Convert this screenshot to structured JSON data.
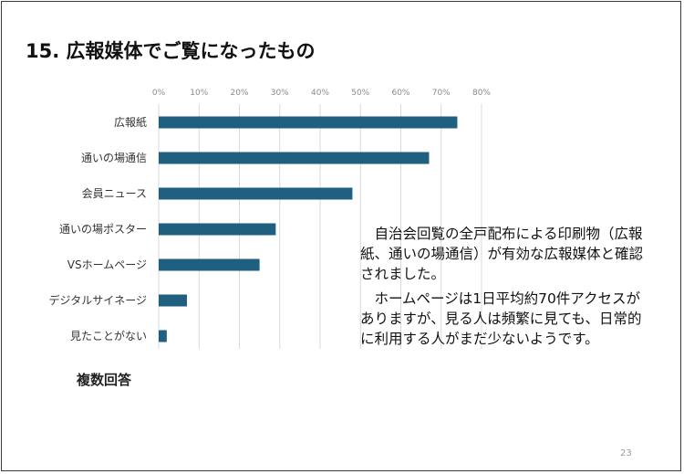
{
  "slide": {
    "title": "15. 広報媒体でご覧になったもの",
    "footnote": "複数回答",
    "paragraphs": [
      "自治会回覧の全戸配布による印刷物（広報紙、通いの場通信）が有効な広報媒体と確認されました。",
      "ホームページは1日平均約70件アクセスがありますが、見る人は頻繁に見ても、日常的に利用する人がまだ少ないようです。"
    ],
    "page_number": "23"
  },
  "chart_data": {
    "type": "bar",
    "orientation": "horizontal",
    "categories": [
      "広報紙",
      "通いの場通信",
      "会員ニュース",
      "通いの場ポスター",
      "VSホームページ",
      "デジタルサイネージ",
      "見たことがない"
    ],
    "values": [
      74,
      67,
      48,
      29,
      25,
      7,
      2
    ],
    "xlim": [
      0,
      80
    ],
    "x_ticks": [
      "0%",
      "10%",
      "20%",
      "30%",
      "40%",
      "50%",
      "60%",
      "70%",
      "80%"
    ],
    "bar_color": "#1f5f7f",
    "grid_color": "#d9d9d9",
    "grid": true
  }
}
